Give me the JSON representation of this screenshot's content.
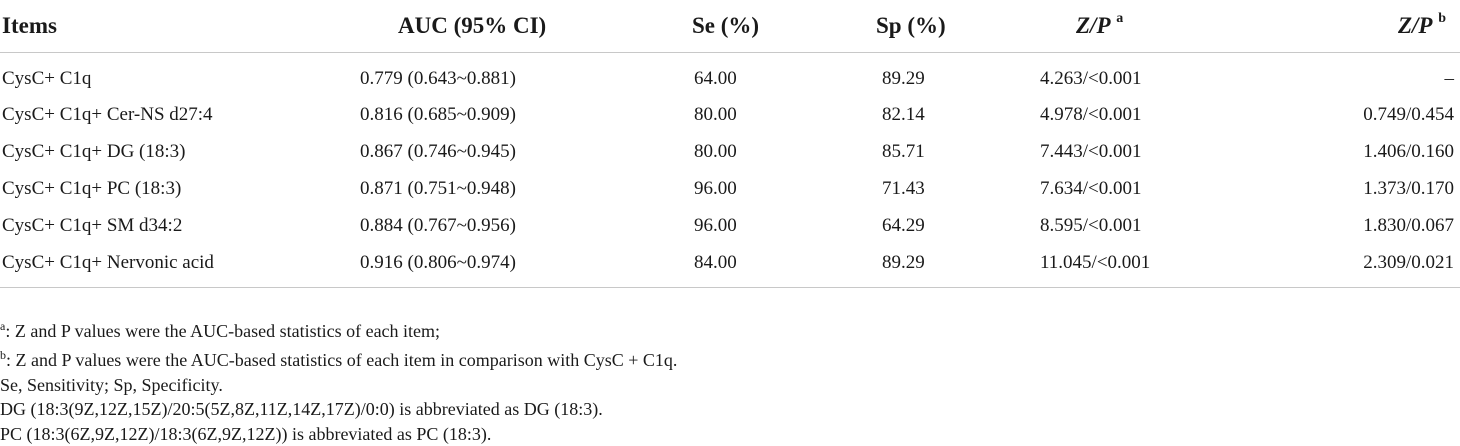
{
  "table": {
    "headers": {
      "items": "Items",
      "auc": "AUC (95% CI)",
      "se": "Se (%)",
      "sp": "Sp (%)",
      "zp_a": "Z/P",
      "zp_a_sup": "a",
      "zp_b": "Z/P",
      "zp_b_sup": "b"
    },
    "rows": [
      {
        "item": "CysC+ C1q",
        "auc": "0.779 (0.643~0.881)",
        "se": "64.00",
        "sp": "89.29",
        "zp_a": "4.263/<0.001",
        "zp_b": "–"
      },
      {
        "item": "CysC+ C1q+ Cer-NS d27:4",
        "auc": "0.816 (0.685~0.909)",
        "se": "80.00",
        "sp": "82.14",
        "zp_a": "4.978/<0.001",
        "zp_b": "0.749/0.454"
      },
      {
        "item": "CysC+ C1q+ DG (18:3)",
        "auc": "0.867 (0.746~0.945)",
        "se": "80.00",
        "sp": "85.71",
        "zp_a": "7.443/<0.001",
        "zp_b": "1.406/0.160"
      },
      {
        "item": "CysC+ C1q+ PC (18:3)",
        "auc": "0.871 (0.751~0.948)",
        "se": "96.00",
        "sp": "71.43",
        "zp_a": "7.634/<0.001",
        "zp_b": "1.373/0.170"
      },
      {
        "item": "CysC+ C1q+ SM d34:2",
        "auc": "0.884 (0.767~0.956)",
        "se": "96.00",
        "sp": "64.29",
        "zp_a": "8.595/<0.001",
        "zp_b": "1.830/0.067"
      },
      {
        "item": "CysC+ C1q+ Nervonic acid",
        "auc": "0.916 (0.806~0.974)",
        "se": "84.00",
        "sp": "89.29",
        "zp_a": "11.045/<0.001",
        "zp_b": "2.309/0.021"
      }
    ]
  },
  "notes": {
    "a_mark": "a",
    "a_text": ": Z and P values were the AUC-based statistics of each item;",
    "b_mark": "b",
    "b_text": ": Z and P values were the AUC-based statistics of each item in comparison with CysC + C1q.",
    "abbrev": "Se, Sensitivity; Sp, Specificity.",
    "dg": "DG (18:3(9Z,12Z,15Z)/20:5(5Z,8Z,11Z,14Z,17Z)/0:0) is abbreviated as DG (18:3).",
    "pc": "PC (18:3(6Z,9Z,12Z)/18:3(6Z,9Z,12Z)) is abbreviated as PC (18:3)."
  }
}
